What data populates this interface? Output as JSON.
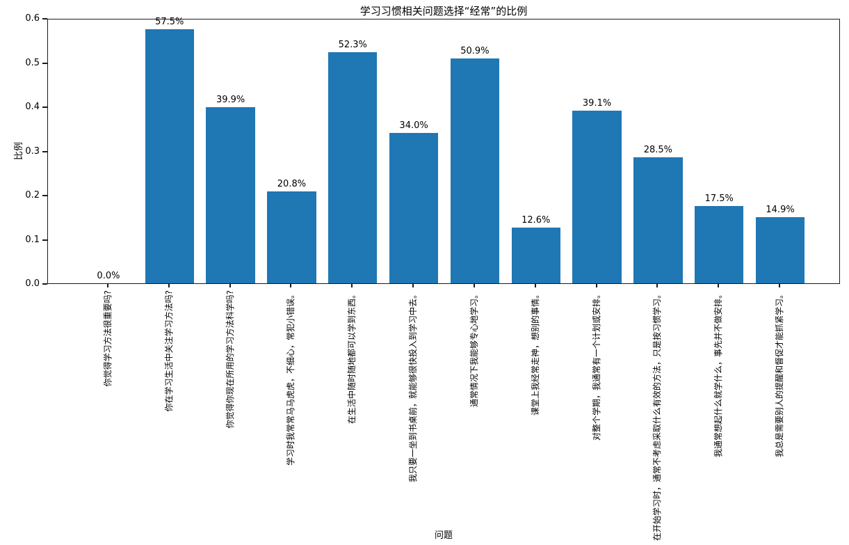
{
  "chart_data": {
    "type": "bar",
    "title": "学习习惯相关问题选择“经常”的比例",
    "xlabel": "问题",
    "ylabel": "比例",
    "ylim": [
      0.0,
      0.6
    ],
    "ytick_labels": [
      "0.0",
      "0.1",
      "0.2",
      "0.3",
      "0.4",
      "0.5",
      "0.6"
    ],
    "grid": "off",
    "legend": "none",
    "bar_color": "#1f77b4",
    "categories": [
      "你觉得学习方法很重要吗?",
      "你在学习生活中关注学习方法吗?",
      "你觉得你现在所用的学习方法科学吗?",
      "学习时我常常马马虎虎，不细心，常犯小错误。",
      "在生活中随时随地都可以学到东西。",
      "我只要一坐到书桌前，就能够很快投入到学习中去。",
      "通常情况下我能够专心地学习。",
      "课堂上我经常走神，想别的事情。",
      "对整个学期，我通常有一个计划或安排。",
      "在开始学习时，通常不考虑采取什么有效的方法，只是按习惯学习。",
      "我通常想起什么就学什么，事先并不做安排。",
      "我总是需要别人的提醒和督促才能抓紧学习。"
    ],
    "values": [
      0.0,
      0.575,
      0.399,
      0.208,
      0.523,
      0.34,
      0.509,
      0.126,
      0.391,
      0.285,
      0.175,
      0.149
    ],
    "value_labels": [
      "0.0%",
      "57.5%",
      "39.9%",
      "20.8%",
      "52.3%",
      "34.0%",
      "50.9%",
      "12.6%",
      "39.1%",
      "28.5%",
      "17.5%",
      "14.9%"
    ]
  }
}
